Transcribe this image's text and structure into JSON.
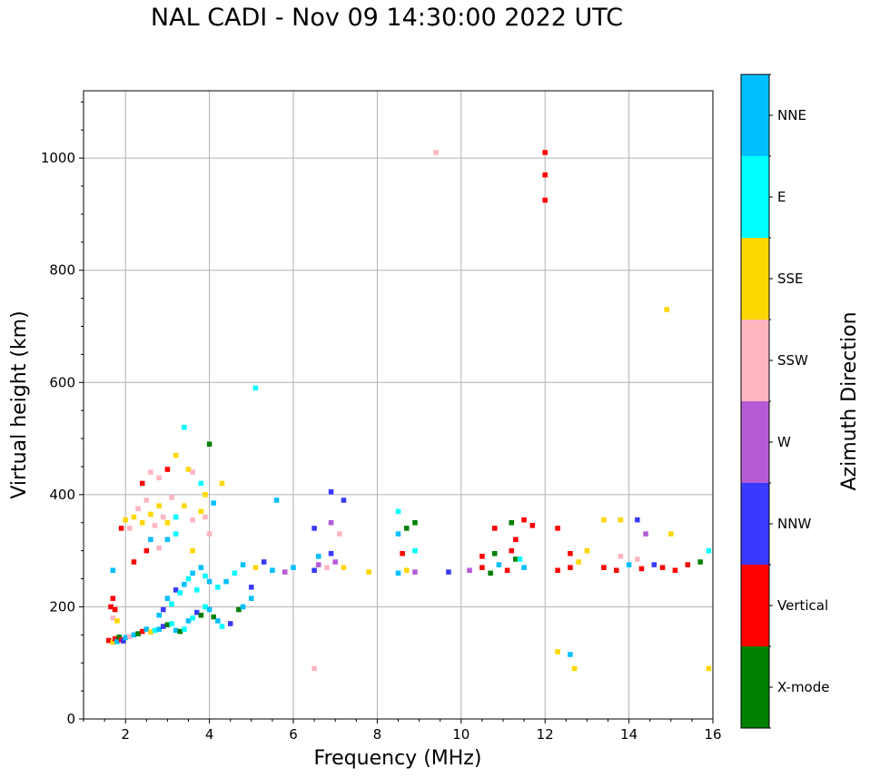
{
  "chart_data": {
    "type": "scatter",
    "title": "NAL CADI - Nov 09 14:30:00 2022 UTC",
    "xlabel": "Frequency (MHz)",
    "ylabel": "Virtual height (km)",
    "xlim": [
      1,
      16
    ],
    "ylim": [
      0,
      1120
    ],
    "xticks": [
      2,
      4,
      6,
      8,
      10,
      12,
      14,
      16
    ],
    "yticks": [
      0,
      200,
      400,
      600,
      800,
      1000
    ],
    "grid": true,
    "colorbar": {
      "label": "Azimuth Direction",
      "categories": [
        {
          "name": "X-mode",
          "color": "#008000"
        },
        {
          "name": "Vertical",
          "color": "#ff0000"
        },
        {
          "name": "NNW",
          "color": "#3a3aff"
        },
        {
          "name": "W",
          "color": "#b65bd6"
        },
        {
          "name": "SSW",
          "color": "#ffb6c1"
        },
        {
          "name": "SSE",
          "color": "#ffd700"
        },
        {
          "name": "E",
          "color": "#00ffff"
        },
        {
          "name": "NNE",
          "color": "#00bfff"
        }
      ]
    },
    "points": [
      [
        1.6,
        140,
        "Vertical"
      ],
      [
        1.7,
        137,
        "SSE"
      ],
      [
        1.75,
        143,
        "Vertical"
      ],
      [
        1.8,
        138,
        "NNE"
      ],
      [
        1.85,
        146,
        "X-mode"
      ],
      [
        1.9,
        141,
        "Vertical"
      ],
      [
        1.95,
        139,
        "NNW"
      ],
      [
        2.0,
        145,
        "NNE"
      ],
      [
        2.1,
        147,
        "SSW"
      ],
      [
        2.2,
        150,
        "NNE"
      ],
      [
        2.3,
        152,
        "X-mode"
      ],
      [
        2.4,
        156,
        "Vertical"
      ],
      [
        2.5,
        160,
        "NNE"
      ],
      [
        2.6,
        155,
        "SSE"
      ],
      [
        2.7,
        158,
        "E"
      ],
      [
        2.8,
        160,
        "NNE"
      ],
      [
        2.9,
        165,
        "NNW"
      ],
      [
        3.0,
        168,
        "X-mode"
      ],
      [
        3.1,
        170,
        "E"
      ],
      [
        3.2,
        158,
        "NNE"
      ],
      [
        3.3,
        156,
        "X-mode"
      ],
      [
        3.4,
        160,
        "E"
      ],
      [
        3.5,
        175,
        "NNE"
      ],
      [
        3.6,
        180,
        "E"
      ],
      [
        3.7,
        190,
        "NNW"
      ],
      [
        3.8,
        185,
        "X-mode"
      ],
      [
        3.9,
        200,
        "E"
      ],
      [
        4.0,
        195,
        "NNE"
      ],
      [
        4.1,
        182,
        "X-mode"
      ],
      [
        4.2,
        175,
        "NNE"
      ],
      [
        4.3,
        165,
        "E"
      ],
      [
        4.5,
        170,
        "NNW"
      ],
      [
        4.7,
        195,
        "X-mode"
      ],
      [
        4.8,
        200,
        "NNE"
      ],
      [
        5.0,
        215,
        "NNE"
      ],
      [
        5.0,
        235,
        "NNW"
      ],
      [
        2.8,
        185,
        "NNE"
      ],
      [
        2.9,
        195,
        "NNW"
      ],
      [
        3.0,
        215,
        "NNE"
      ],
      [
        3.1,
        205,
        "E"
      ],
      [
        3.2,
        230,
        "NNW"
      ],
      [
        3.3,
        225,
        "E"
      ],
      [
        3.4,
        240,
        "NNE"
      ],
      [
        3.5,
        250,
        "E"
      ],
      [
        3.6,
        260,
        "NNE"
      ],
      [
        3.7,
        230,
        "E"
      ],
      [
        3.8,
        270,
        "NNE"
      ],
      [
        3.9,
        255,
        "E"
      ],
      [
        4.0,
        245,
        "NNE"
      ],
      [
        4.2,
        235,
        "E"
      ],
      [
        4.4,
        245,
        "NNE"
      ],
      [
        4.6,
        260,
        "E"
      ],
      [
        4.8,
        275,
        "NNE"
      ],
      [
        1.65,
        200,
        "Vertical"
      ],
      [
        1.7,
        180,
        "SSW"
      ],
      [
        1.75,
        195,
        "Vertical"
      ],
      [
        1.8,
        175,
        "SSE"
      ],
      [
        1.7,
        265,
        "NNE"
      ],
      [
        1.7,
        215,
        "Vertical"
      ],
      [
        2.2,
        280,
        "Vertical"
      ],
      [
        2.5,
        300,
        "Vertical"
      ],
      [
        2.6,
        320,
        "NNE"
      ],
      [
        2.8,
        305,
        "SSW"
      ],
      [
        3.0,
        320,
        "NNE"
      ],
      [
        3.2,
        330,
        "E"
      ],
      [
        3.6,
        300,
        "SSE"
      ],
      [
        4.0,
        330,
        "SSW"
      ],
      [
        1.9,
        340,
        "Vertical"
      ],
      [
        2.0,
        355,
        "SSE"
      ],
      [
        2.1,
        340,
        "SSW"
      ],
      [
        2.2,
        360,
        "SSE"
      ],
      [
        2.3,
        375,
        "SSW"
      ],
      [
        2.4,
        350,
        "SSE"
      ],
      [
        2.5,
        390,
        "SSW"
      ],
      [
        2.6,
        365,
        "SSE"
      ],
      [
        2.7,
        345,
        "SSW"
      ],
      [
        2.8,
        380,
        "SSE"
      ],
      [
        2.9,
        360,
        "SSW"
      ],
      [
        3.0,
        350,
        "SSE"
      ],
      [
        3.1,
        395,
        "SSW"
      ],
      [
        3.2,
        360,
        "E"
      ],
      [
        3.4,
        380,
        "SSE"
      ],
      [
        3.6,
        355,
        "SSW"
      ],
      [
        3.8,
        370,
        "SSE"
      ],
      [
        3.9,
        360,
        "SSW"
      ],
      [
        4.1,
        385,
        "NNE"
      ],
      [
        2.4,
        420,
        "Vertical"
      ],
      [
        2.6,
        440,
        "SSW"
      ],
      [
        2.8,
        430,
        "SSW"
      ],
      [
        3.0,
        445,
        "Vertical"
      ],
      [
        3.2,
        470,
        "SSE"
      ],
      [
        3.5,
        445,
        "SSE"
      ],
      [
        3.6,
        440,
        "SSW"
      ],
      [
        3.8,
        420,
        "E"
      ],
      [
        3.9,
        400,
        "SSE"
      ],
      [
        4.0,
        490,
        "X-mode"
      ],
      [
        4.3,
        420,
        "SSE"
      ],
      [
        3.4,
        520,
        "E"
      ],
      [
        5.1,
        590,
        "E"
      ],
      [
        5.6,
        390,
        "NNE"
      ],
      [
        5.1,
        270,
        "SSE"
      ],
      [
        5.3,
        280,
        "NNW"
      ],
      [
        5.5,
        265,
        "NNE"
      ],
      [
        5.8,
        262,
        "W"
      ],
      [
        6.0,
        270,
        "NNE"
      ],
      [
        6.5,
        265,
        "NNW"
      ],
      [
        6.6,
        275,
        "W"
      ],
      [
        6.8,
        270,
        "SSW"
      ],
      [
        7.0,
        280,
        "W"
      ],
      [
        7.2,
        270,
        "SSE"
      ],
      [
        6.6,
        290,
        "NNE"
      ],
      [
        6.9,
        295,
        "NNW"
      ],
      [
        6.5,
        340,
        "NNW"
      ],
      [
        6.9,
        350,
        "W"
      ],
      [
        7.1,
        330,
        "SSW"
      ],
      [
        6.9,
        405,
        "NNW"
      ],
      [
        7.2,
        390,
        "NNW"
      ],
      [
        6.5,
        90,
        "SSW"
      ],
      [
        7.8,
        262,
        "SSE"
      ],
      [
        8.5,
        260,
        "NNE"
      ],
      [
        8.7,
        265,
        "SSE"
      ],
      [
        8.9,
        262,
        "W"
      ],
      [
        8.5,
        330,
        "NNE"
      ],
      [
        8.7,
        340,
        "X-mode"
      ],
      [
        8.9,
        350,
        "X-mode"
      ],
      [
        8.6,
        295,
        "Vertical"
      ],
      [
        8.9,
        300,
        "E"
      ],
      [
        8.5,
        370,
        "E"
      ],
      [
        9.4,
        1010,
        "SSW"
      ],
      [
        9.7,
        262,
        "NNW"
      ],
      [
        10.2,
        265,
        "W"
      ],
      [
        10.5,
        270,
        "Vertical"
      ],
      [
        10.7,
        260,
        "X-mode"
      ],
      [
        10.9,
        275,
        "NNE"
      ],
      [
        11.1,
        265,
        "Vertical"
      ],
      [
        11.3,
        285,
        "X-mode"
      ],
      [
        11.5,
        270,
        "NNE"
      ],
      [
        10.5,
        290,
        "Vertical"
      ],
      [
        10.8,
        295,
        "X-mode"
      ],
      [
        11.2,
        300,
        "Vertical"
      ],
      [
        11.4,
        285,
        "E"
      ],
      [
        10.8,
        340,
        "Vertical"
      ],
      [
        11.2,
        350,
        "X-mode"
      ],
      [
        11.5,
        355,
        "Vertical"
      ],
      [
        11.7,
        345,
        "Vertical"
      ],
      [
        11.3,
        320,
        "Vertical"
      ],
      [
        12.0,
        970,
        "Vertical"
      ],
      [
        12.0,
        925,
        "Vertical"
      ],
      [
        12.0,
        1010,
        "Vertical"
      ],
      [
        12.3,
        265,
        "Vertical"
      ],
      [
        12.6,
        270,
        "Vertical"
      ],
      [
        12.8,
        280,
        "SSE"
      ],
      [
        12.6,
        295,
        "Vertical"
      ],
      [
        12.3,
        340,
        "Vertical"
      ],
      [
        12.3,
        120,
        "SSE"
      ],
      [
        12.6,
        115,
        "NNE"
      ],
      [
        12.7,
        90,
        "SSE"
      ],
      [
        13.0,
        300,
        "SSE"
      ],
      [
        13.4,
        270,
        "Vertical"
      ],
      [
        13.7,
        265,
        "Vertical"
      ],
      [
        14.0,
        275,
        "NNE"
      ],
      [
        14.3,
        268,
        "Vertical"
      ],
      [
        14.6,
        275,
        "NNW"
      ],
      [
        14.8,
        270,
        "Vertical"
      ],
      [
        15.1,
        265,
        "Vertical"
      ],
      [
        15.4,
        275,
        "Vertical"
      ],
      [
        15.7,
        280,
        "X-mode"
      ],
      [
        13.4,
        355,
        "SSE"
      ],
      [
        13.8,
        355,
        "SSE"
      ],
      [
        14.2,
        355,
        "NNW"
      ],
      [
        14.4,
        330,
        "W"
      ],
      [
        15.0,
        330,
        "SSE"
      ],
      [
        13.8,
        290,
        "SSW"
      ],
      [
        14.2,
        285,
        "SSW"
      ],
      [
        14.9,
        730,
        "SSE"
      ],
      [
        15.9,
        300,
        "E"
      ],
      [
        15.9,
        90,
        "SSE"
      ]
    ]
  }
}
